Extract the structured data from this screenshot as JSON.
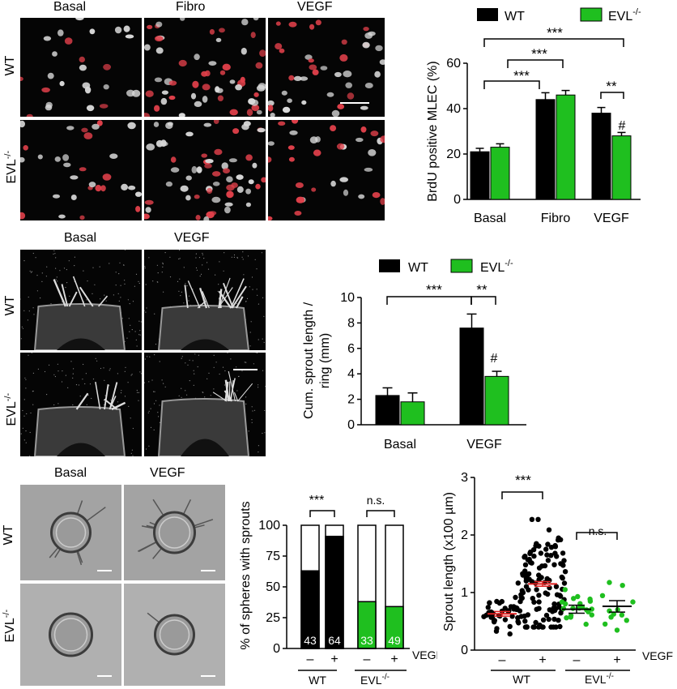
{
  "panelA": {
    "col_labels": [
      "Basal",
      "Fibro",
      "VEGF"
    ],
    "row_labels": [
      "WT",
      "EVL"
    ],
    "row_sup": "-/-"
  },
  "panelB": {
    "col_labels": [
      "Basal",
      "VEGF"
    ],
    "row_labels": [
      "WT",
      "EVL"
    ],
    "row_sup": "-/-"
  },
  "panelC": {
    "col_labels": [
      "Basal",
      "VEGF"
    ],
    "row_labels": [
      "WT",
      "EVL"
    ],
    "row_sup": "-/-"
  },
  "chart_data": [
    {
      "type": "bar",
      "ylabel": "BrdU positive MLEC (%)",
      "categories": [
        "Basal",
        "Fibro",
        "VEGF"
      ],
      "ylim": [
        0,
        60
      ],
      "yticks": [
        0,
        20,
        40,
        60
      ],
      "legend": {
        "wt": "WT",
        "evl": "EVL",
        "evl_sup": "-/-",
        "placement": "top"
      },
      "series": [
        {
          "name": "WT",
          "values": [
            21,
            44,
            38
          ],
          "errors": [
            1.5,
            3,
            2.5
          ],
          "color": "#000000"
        },
        {
          "name": "EVL-/-",
          "values": [
            23,
            46,
            28
          ],
          "errors": [
            1.5,
            2,
            1.5
          ],
          "color": "#1fbf1f"
        }
      ],
      "sig": [
        "***",
        "***",
        "***",
        "**"
      ],
      "hash": "#"
    },
    {
      "type": "bar",
      "ylabel_line1": "Cum. sprout length /",
      "ylabel_line2": "ring  (mm)",
      "categories": [
        "Basal",
        "VEGF"
      ],
      "ylim": [
        0,
        10
      ],
      "yticks": [
        0,
        2,
        4,
        6,
        8,
        10
      ],
      "legend": {
        "wt": "WT",
        "evl": "EVL",
        "evl_sup": "-/-",
        "placement": "top"
      },
      "series": [
        {
          "name": "WT",
          "values": [
            2.3,
            7.6
          ],
          "errors": [
            0.6,
            1.1
          ],
          "color": "#000000"
        },
        {
          "name": "EVL-/-",
          "values": [
            1.8,
            3.8
          ],
          "errors": [
            0.7,
            0.4
          ],
          "color": "#1fbf1f"
        }
      ],
      "sig": [
        "***",
        "**"
      ],
      "hash": "#"
    },
    {
      "type": "bar",
      "ylabel": "% of spheres with sprouts",
      "ylim": [
        0,
        100
      ],
      "yticks": [
        0,
        25,
        50,
        75,
        100
      ],
      "values": [
        63,
        91,
        38,
        34
      ],
      "counts": [
        "43",
        "64",
        "33",
        "49"
      ],
      "colors": [
        "#000000",
        "#000000",
        "#1fbf1f",
        "#1fbf1f"
      ],
      "signs": [
        "–",
        "+",
        "–",
        "+"
      ],
      "condition_label": "VEGF",
      "groups": [
        "WT",
        "EVL"
      ],
      "group_sup": "-/-",
      "sig": [
        "***",
        "n.s."
      ]
    },
    {
      "type": "scatter",
      "ylabel": "Sprout length (x100 µm)",
      "ylim": [
        0,
        3
      ],
      "yticks": [
        0,
        1,
        2,
        3
      ],
      "groups": [
        {
          "mean": 0.63,
          "sem": 0.04,
          "color": "#000000"
        },
        {
          "mean": 1.15,
          "sem": 0.04,
          "color": "#000000"
        },
        {
          "mean": 0.71,
          "sem": 0.07,
          "color": "#1fbf1f"
        },
        {
          "mean": 0.76,
          "sem": 0.1,
          "color": "#1fbf1f"
        }
      ],
      "signs": [
        "–",
        "+",
        "–",
        "+"
      ],
      "condition_label": "VEGF",
      "group_labels": [
        "WT",
        "EVL"
      ],
      "group_sup": "-/-",
      "sig": [
        "***",
        "n.s."
      ]
    }
  ]
}
